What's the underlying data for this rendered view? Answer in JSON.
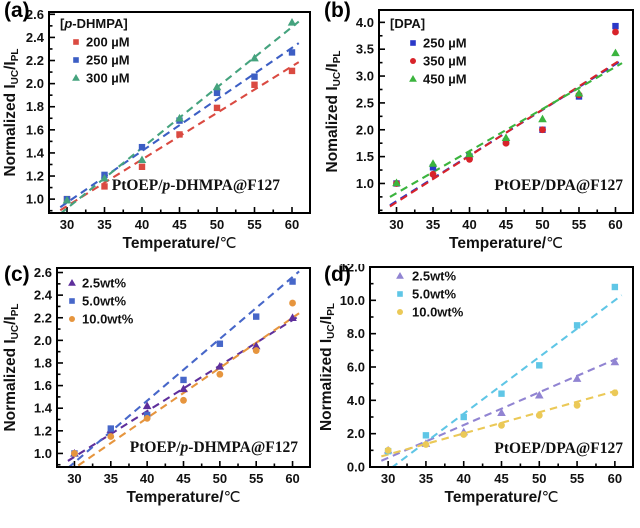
{
  "chart_data": [
    {
      "panel_label": "(a)",
      "type": "scatter",
      "xlabel": "Temperature/℃",
      "ylabel": "Normalized I_UC/I_PL",
      "ylabel_parts": [
        {
          "t": "Normalized I"
        },
        {
          "t": "UC",
          "sub": true
        },
        {
          "t": "/I"
        },
        {
          "t": "PL",
          "sub": true
        }
      ],
      "legend_title": "[p-DHMPA]",
      "legend_title_parts": [
        {
          "t": "["
        },
        {
          "t": "p",
          "italic": true
        },
        {
          "t": "-DHMPA]"
        }
      ],
      "legend_position": "top-left",
      "annotation": "PtOEP/p-DHMPA@F127",
      "annotation_parts": [
        {
          "t": "PtOEP/"
        },
        {
          "t": "p",
          "italic": true
        },
        {
          "t": "-DHMPA@F127"
        }
      ],
      "x": [
        30,
        35,
        40,
        45,
        50,
        55,
        60
      ],
      "xlim": [
        27.6,
        62.4
      ],
      "xticks": [
        30,
        35,
        40,
        45,
        50,
        55,
        60
      ],
      "x_minor_step": 2.5,
      "ylim": [
        0.88,
        2.62
      ],
      "yticks": [
        1.0,
        1.2,
        1.4,
        1.6,
        1.8,
        2.0,
        2.2,
        2.4,
        2.6
      ],
      "y_minor_step": 0.1,
      "grid": false,
      "series": [
        {
          "name": "200 µM",
          "marker": "square",
          "color": "#da4a41",
          "values": [
            1.0,
            1.11,
            1.28,
            1.56,
            1.79,
            1.99,
            2.11
          ],
          "fit": {
            "x0": 30,
            "y0": 0.94,
            "x1": 60,
            "y1": 2.15
          }
        },
        {
          "name": "250 µM",
          "marker": "square",
          "color": "#3c5ec4",
          "values": [
            1.0,
            1.21,
            1.45,
            1.68,
            1.92,
            2.06,
            2.27
          ],
          "fit": {
            "x0": 30,
            "y0": 0.97,
            "x1": 60,
            "y1": 2.31
          }
        },
        {
          "name": "300 µM",
          "marker": "triangle",
          "color": "#45a37e",
          "values": [
            0.99,
            1.18,
            1.34,
            1.7,
            1.97,
            2.22,
            2.53
          ],
          "fit": {
            "x0": 30,
            "y0": 0.92,
            "x1": 60,
            "y1": 2.49
          }
        }
      ]
    },
    {
      "panel_label": "(b)",
      "type": "scatter",
      "xlabel": "Temperature/℃",
      "ylabel": "Nomalized I_UC/I_PL",
      "ylabel_parts": [
        {
          "t": "Nomalized I"
        },
        {
          "t": "UC",
          "sub": true
        },
        {
          "t": "/I"
        },
        {
          "t": "PL",
          "sub": true
        }
      ],
      "legend_title": "[DPA]",
      "legend_title_parts": [
        {
          "t": "[DPA]"
        }
      ],
      "legend_position": "top-left",
      "annotation": "PtOEP/DPA@F127",
      "annotation_parts": [
        {
          "t": "PtOEP/DPA@F127"
        }
      ],
      "x": [
        30,
        35,
        40,
        45,
        50,
        55,
        60
      ],
      "xlim": [
        27.6,
        62.4
      ],
      "xticks": [
        30,
        35,
        40,
        45,
        50,
        55,
        60
      ],
      "x_minor_step": 2.5,
      "ylim": [
        0.45,
        4.23
      ],
      "yticks": [
        1.0,
        1.5,
        2.0,
        2.5,
        3.0,
        3.5,
        4.0
      ],
      "y_minor_step": 0.25,
      "grid": false,
      "series": [
        {
          "name": "250 µM",
          "marker": "square",
          "color": "#2a38c8",
          "values": [
            1.0,
            1.3,
            1.5,
            1.78,
            2.0,
            2.62,
            3.93
          ],
          "fit": {
            "x0": 30,
            "y0": 0.67,
            "x1": 60,
            "y1": 3.22
          }
        },
        {
          "name": "350 µM",
          "marker": "circle",
          "color": "#d8232a",
          "values": [
            1.0,
            1.17,
            1.45,
            1.75,
            2.0,
            2.65,
            3.82
          ],
          "fit": {
            "x0": 30,
            "y0": 0.65,
            "x1": 60,
            "y1": 3.24
          }
        },
        {
          "name": "450 µM",
          "marker": "triangle",
          "color": "#3bb43e",
          "values": [
            1.01,
            1.37,
            1.55,
            1.85,
            2.2,
            2.68,
            3.43
          ],
          "fit": {
            "x0": 30,
            "y0": 0.82,
            "x1": 60,
            "y1": 3.17
          }
        }
      ]
    },
    {
      "panel_label": "(c)",
      "type": "scatter",
      "xlabel": "Temperature/℃",
      "ylabel": "Normalized I_UC/I_PL",
      "ylabel_parts": [
        {
          "t": "Normalized I"
        },
        {
          "t": "UC",
          "sub": true
        },
        {
          "t": "/I"
        },
        {
          "t": "PL",
          "sub": true
        }
      ],
      "legend_title": null,
      "legend_title_parts": null,
      "legend_position": "top-left",
      "annotation": "PtOEP/p-DHMPA@F127",
      "annotation_parts": [
        {
          "t": "PtOEP/"
        },
        {
          "t": "p",
          "italic": true
        },
        {
          "t": "-DHMPA@F127"
        }
      ],
      "x": [
        30,
        35,
        40,
        45,
        50,
        55,
        60
      ],
      "xlim": [
        27.6,
        62.4
      ],
      "xticks": [
        30,
        35,
        40,
        45,
        50,
        55,
        60
      ],
      "x_minor_step": 2.5,
      "ylim": [
        0.88,
        2.64
      ],
      "yticks": [
        1.0,
        1.2,
        1.4,
        1.6,
        1.8,
        2.0,
        2.2,
        2.4,
        2.6
      ],
      "y_minor_step": 0.1,
      "grid": false,
      "series": [
        {
          "name": "2.5wt%",
          "marker": "triangle",
          "color": "#5e2f9c",
          "values": [
            1.0,
            1.21,
            1.42,
            1.57,
            1.77,
            1.95,
            2.2
          ],
          "fit": {
            "x0": 30,
            "y0": 0.97,
            "x1": 60,
            "y1": 2.18
          }
        },
        {
          "name": "5.0wt%",
          "marker": "square",
          "color": "#4767c9",
          "values": [
            1.0,
            1.22,
            1.34,
            1.65,
            1.97,
            2.21,
            2.52
          ],
          "fit": {
            "x0": 30,
            "y0": 0.92,
            "x1": 60,
            "y1": 2.56
          }
        },
        {
          "name": "10.0wt%",
          "marker": "circle",
          "color": "#e6953e",
          "values": [
            1.0,
            1.15,
            1.31,
            1.47,
            1.7,
            1.91,
            2.33
          ],
          "fit": {
            "x0": 30,
            "y0": 0.87,
            "x1": 60,
            "y1": 2.2
          }
        }
      ]
    },
    {
      "panel_label": "(d)",
      "type": "scatter",
      "xlabel": "Temperature/℃",
      "ylabel": "Normalized I_UC/I_PL",
      "ylabel_parts": [
        {
          "t": "Normalized I"
        },
        {
          "t": "UC",
          "sub": true
        },
        {
          "t": "/I"
        },
        {
          "t": "PL",
          "sub": true
        }
      ],
      "legend_title": null,
      "legend_title_parts": null,
      "legend_position": "top-left",
      "annotation": "PtOEP/DPA@F127",
      "annotation_parts": [
        {
          "t": "PtOEP/DPA@F127"
        }
      ],
      "x": [
        30,
        35,
        40,
        45,
        50,
        55,
        60
      ],
      "xlim": [
        27.6,
        62.4
      ],
      "xticks": [
        30,
        35,
        40,
        45,
        50,
        55,
        60
      ],
      "x_minor_step": 2.5,
      "ylim": [
        0.0,
        12.0
      ],
      "yticks": [
        0.0,
        2.0,
        4.0,
        6.0,
        8.0,
        10.0,
        12.0
      ],
      "y_minor_step": 1.0,
      "grid": false,
      "series": [
        {
          "name": "2.5wt%",
          "marker": "triangle",
          "color": "#9184d2",
          "values": [
            1.0,
            1.4,
            2.1,
            3.25,
            4.3,
            5.3,
            6.3
          ],
          "fit": {
            "x0": 30,
            "y0": 0.55,
            "x1": 60,
            "y1": 6.45
          }
        },
        {
          "name": "5.0wt%",
          "marker": "square",
          "color": "#5fc6e6",
          "values": [
            0.95,
            1.9,
            3.0,
            4.4,
            6.1,
            8.5,
            10.8
          ],
          "fit": {
            "x0": 30,
            "y0": -0.2,
            "x1": 60,
            "y1": 10.0
          }
        },
        {
          "name": "10.0wt%",
          "marker": "circle",
          "color": "#ebc957",
          "values": [
            1.0,
            1.35,
            1.95,
            2.5,
            3.1,
            3.7,
            4.45
          ],
          "fit": {
            "x0": 30,
            "y0": 0.75,
            "x1": 60,
            "y1": 4.55
          }
        }
      ]
    }
  ],
  "colors": {
    "axis": "#000000",
    "text": "#111111",
    "background": "#ffffff"
  }
}
